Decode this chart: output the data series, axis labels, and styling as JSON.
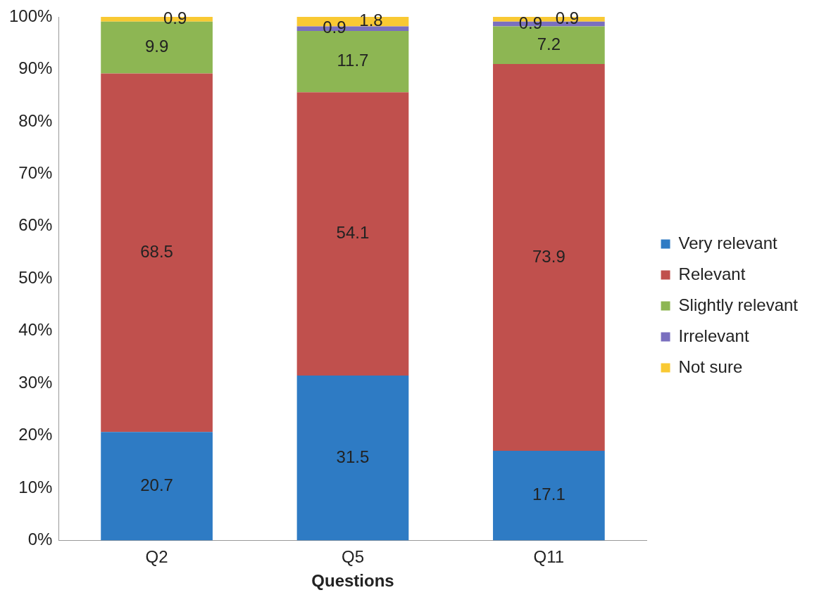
{
  "chart_data": {
    "type": "bar",
    "stacked": true,
    "xlabel": "Questions",
    "categories": [
      "Q2",
      "Q5",
      "Q11"
    ],
    "series": [
      {
        "name": "Very relevant",
        "color": "#2e7bc4",
        "values": [
          20.7,
          31.5,
          17.1
        ],
        "value_labels": [
          "20.7",
          "31.5",
          "17.1"
        ]
      },
      {
        "name": "Relevant",
        "color": "#c0504d",
        "values": [
          68.5,
          54.1,
          73.9
        ],
        "value_labels": [
          "68.5",
          "54.1",
          "73.9"
        ]
      },
      {
        "name": "Slightly relevant",
        "color": "#8db653",
        "values": [
          9.9,
          11.7,
          7.2
        ],
        "value_labels": [
          "9.9",
          "11.7",
          "7.2"
        ]
      },
      {
        "name": "Irrelevant",
        "color": "#7a6fbf",
        "values": [
          0,
          0.9,
          0.9
        ],
        "value_labels": [
          null,
          "0.9",
          "0.9"
        ]
      },
      {
        "name": "Not sure",
        "color": "#f9c933",
        "values": [
          0.9,
          1.8,
          0.9
        ],
        "value_labels": [
          "0.9",
          "1.8",
          "0.9"
        ]
      }
    ],
    "ylim": [
      0,
      100
    ],
    "yticks": [
      {
        "value": 0,
        "label": "0%"
      },
      {
        "value": 10,
        "label": "10%"
      },
      {
        "value": 20,
        "label": "20%"
      },
      {
        "value": 30,
        "label": "30%"
      },
      {
        "value": 40,
        "label": "40%"
      },
      {
        "value": 50,
        "label": "50%"
      },
      {
        "value": 60,
        "label": "60%"
      },
      {
        "value": 70,
        "label": "70%"
      },
      {
        "value": 80,
        "label": "80%"
      },
      {
        "value": 90,
        "label": "90%"
      },
      {
        "value": 100,
        "label": "100%"
      }
    ],
    "grid": false,
    "legend": "right"
  }
}
